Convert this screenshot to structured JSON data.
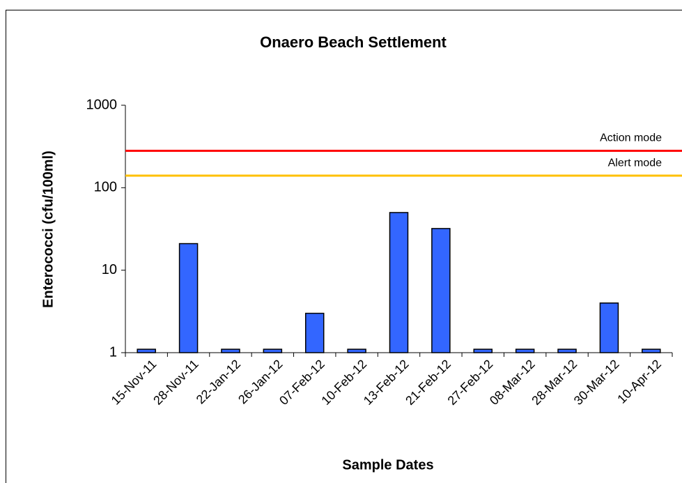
{
  "chart_data": {
    "type": "bar",
    "title": "Onaero Beach Settlement",
    "x_label": "Sample Dates",
    "y_label": "Enterococci (cfu/100ml)",
    "categories": [
      "15-Nov-11",
      "28-Nov-11",
      "22-Jan-12",
      "26-Jan-12",
      "07-Feb-12",
      "10-Feb-12",
      "13-Feb-12",
      "21-Feb-12",
      "27-Feb-12",
      "08-Mar-12",
      "28-Mar-12",
      "30-Mar-12",
      "10-Apr-12"
    ],
    "values": [
      1.1,
      21,
      1.1,
      1.1,
      3,
      1.1,
      50,
      32,
      1.1,
      1.1,
      1.1,
      4,
      1.1
    ],
    "color": "#3366ff",
    "log_scale": true,
    "ylim": [
      1,
      1000
    ],
    "yticks": [
      1,
      10,
      100,
      1000
    ],
    "reference_lines": [
      {
        "name": "Action mode",
        "value": 280,
        "color": "#ff0000"
      },
      {
        "name": "Alert mode",
        "value": 140,
        "color": "#ffc000"
      }
    ]
  }
}
